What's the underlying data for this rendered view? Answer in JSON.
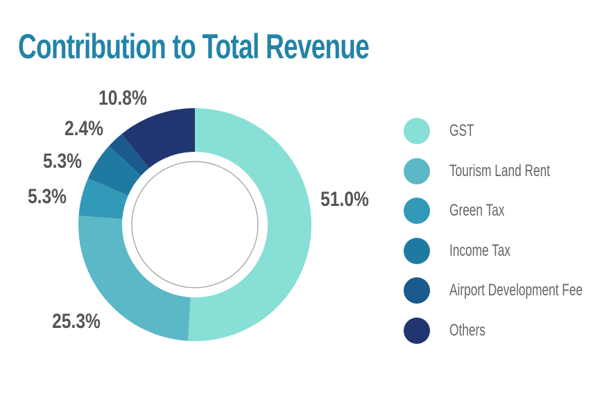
{
  "chart_data": {
    "type": "donut",
    "title": "Contribution to Total Revenue",
    "categories": [
      "GST",
      "Tourism Land Rent",
      "Green Tax",
      "Income Tax",
      "Airport Development Fee",
      "Others"
    ],
    "values": [
      51.0,
      25.3,
      5.3,
      5.3,
      2.4,
      10.8
    ],
    "labels": [
      "51.0%",
      "25.3%",
      "5.3%",
      "5.3%",
      "2.4%",
      "10.8%"
    ],
    "colors": [
      "#87dfd5",
      "#5bb8c6",
      "#3399b8",
      "#1f7aa2",
      "#1a5a8c",
      "#213571"
    ],
    "legend_position": "right"
  }
}
